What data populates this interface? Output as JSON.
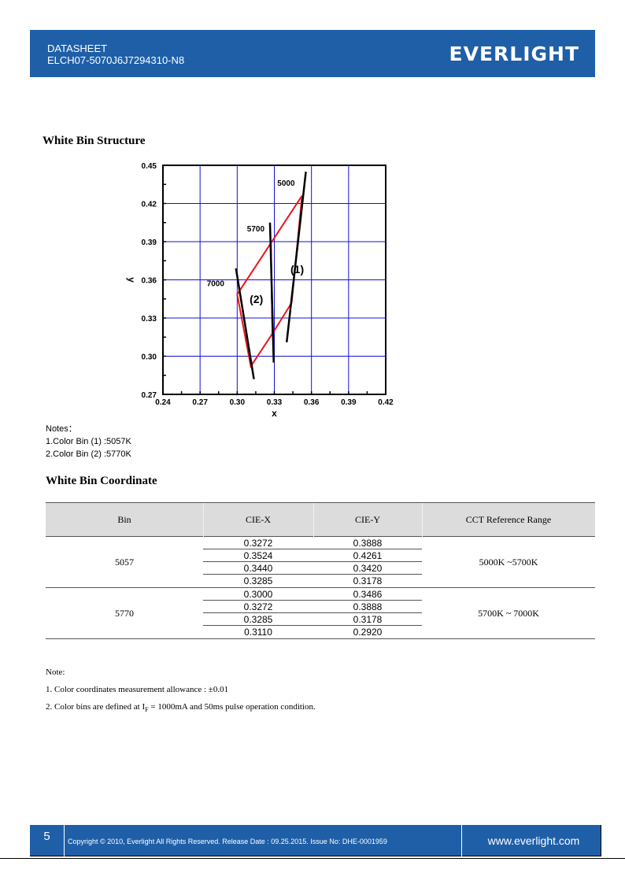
{
  "header": {
    "line1": "DATASHEET",
    "line2": "ELCH07-5070J6J7294310-N8",
    "logo_text": "EVERLIGHT",
    "color": "#1f5fa8"
  },
  "section1": {
    "title": "White Bin Structure"
  },
  "chart_data": {
    "type": "line",
    "xlabel": "x",
    "ylabel": "y",
    "xlim": [
      0.24,
      0.42
    ],
    "ylim": [
      0.27,
      0.45
    ],
    "xticks": [
      "0.24",
      "0.27",
      "0.30",
      "0.33",
      "0.36",
      "0.39",
      "0.42"
    ],
    "yticks": [
      "0.27",
      "0.30",
      "0.33",
      "0.36",
      "0.39",
      "0.42",
      "0.45"
    ],
    "grid": true,
    "bins": [
      {
        "label": "(1)",
        "polygon": [
          [
            0.3272,
            0.3888
          ],
          [
            0.3524,
            0.4261
          ],
          [
            0.344,
            0.342
          ],
          [
            0.3285,
            0.3178
          ]
        ],
        "label_pos": [
          0.3485,
          0.3652
        ]
      },
      {
        "label": "(2)",
        "polygon": [
          [
            0.3,
            0.3486
          ],
          [
            0.3272,
            0.3888
          ],
          [
            0.3285,
            0.3178
          ],
          [
            0.311,
            0.292
          ]
        ],
        "label_pos": [
          0.3155,
          0.3416
        ]
      }
    ],
    "isotherms": [
      {
        "label": "5000",
        "line": [
          [
            0.34,
            0.311
          ],
          [
            0.3555,
            0.445
          ]
        ],
        "label_pos": [
          0.3395,
          0.434
        ]
      },
      {
        "label": "5700",
        "line": [
          [
            0.3265,
            0.405
          ],
          [
            0.3295,
            0.295
          ]
        ],
        "label_pos": [
          0.315,
          0.398
        ]
      },
      {
        "label": "7000",
        "line": [
          [
            0.299,
            0.369
          ],
          [
            0.3135,
            0.282
          ]
        ],
        "label_pos": [
          0.2825,
          0.355
        ]
      }
    ],
    "bin_color": "#e8141e",
    "isotherm_color": "#000000",
    "grid_color": "#1010d0"
  },
  "notes": {
    "title": "Notes：",
    "items": [
      "1.Color Bin (1) :5057K",
      "2.Color Bin (2) :5770K"
    ]
  },
  "section2": {
    "title": "White Bin Coordinate"
  },
  "table": {
    "headers": [
      "Bin",
      "CIE-X",
      "CIE-Y",
      "CCT Reference Range"
    ],
    "groups": [
      {
        "bin": "5057",
        "range": "5000K ~5700K",
        "rows": [
          {
            "x": "0.3272",
            "y": "0.3888"
          },
          {
            "x": "0.3524",
            "y": "0.4261"
          },
          {
            "x": "0.3440",
            "y": "0.3420"
          },
          {
            "x": "0.3285",
            "y": "0.3178"
          }
        ]
      },
      {
        "bin": "5770",
        "range": "5700K ~ 7000K",
        "rows": [
          {
            "x": "0.3000",
            "y": "0.3486"
          },
          {
            "x": "0.3272",
            "y": "0.3888"
          },
          {
            "x": "0.3285",
            "y": "0.3178"
          },
          {
            "x": "0.3110",
            "y": "0.2920"
          }
        ]
      }
    ]
  },
  "note2": {
    "title": "Note:",
    "item1": "1. Color coordinates measurement allowance : ±0.01",
    "item2_pre": "2. Color bins are defined at I",
    "item2_sub": "F",
    "item2_post": " = 1000mA and 50ms pulse operation condition."
  },
  "footer": {
    "page": "5",
    "copyright": "Copyright © 2010, Everlight All Rights Reserved. Release Date : 09.25.2015. Issue No: DHE-0001959",
    "url": "www.everlight.com"
  }
}
